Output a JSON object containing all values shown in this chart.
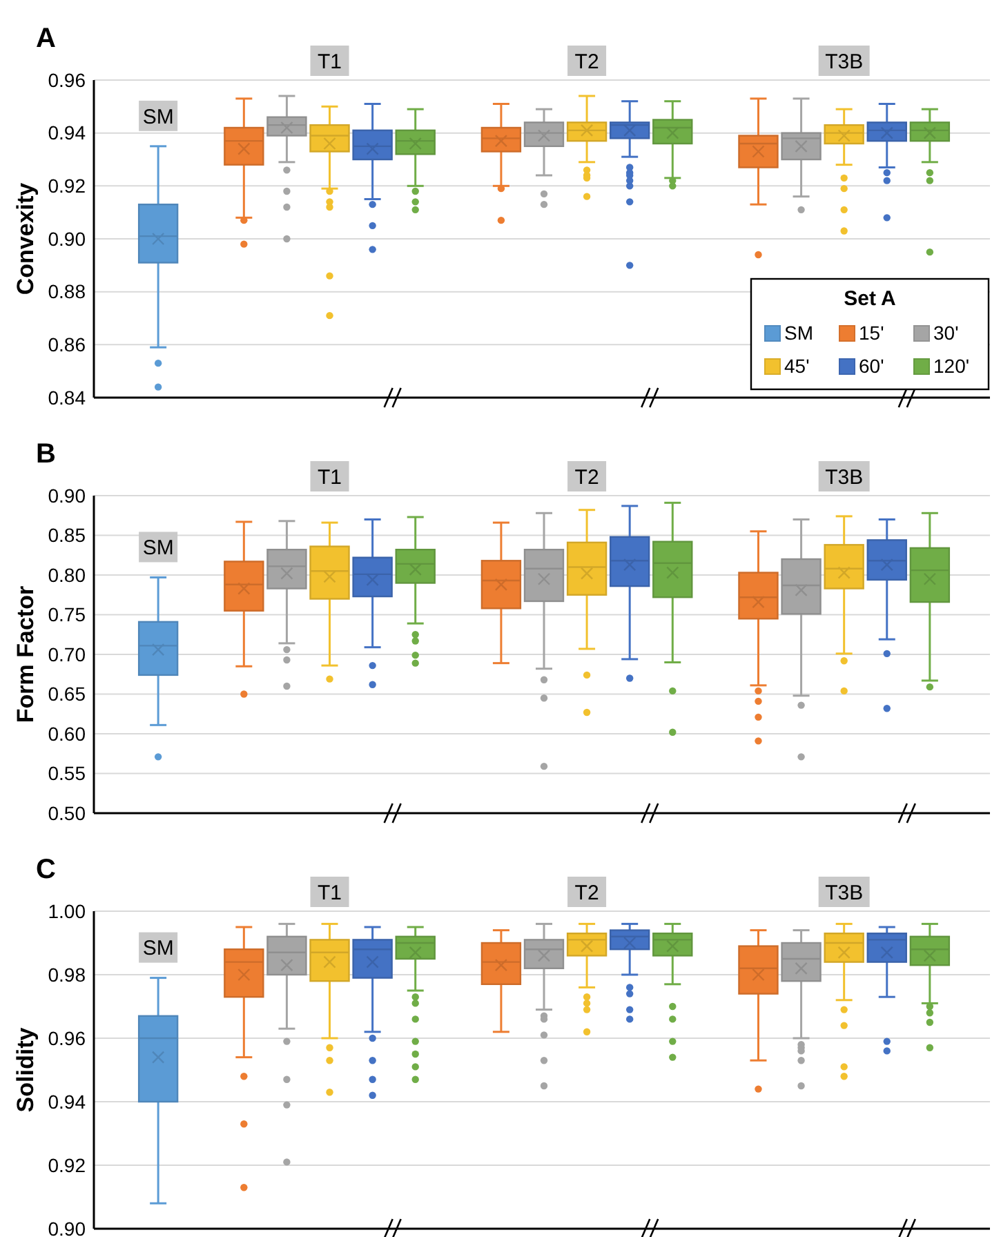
{
  "chart_data": [
    {
      "type": "box",
      "title": "A",
      "ylabel": "Convexity",
      "categories": [
        null,
        null,
        null,
        null,
        null,
        null,
        null,
        null,
        null,
        null,
        null,
        null,
        null,
        null,
        null,
        null,
        null,
        null,
        null,
        null,
        null
      ],
      "ylim": [
        0.84,
        0.96
      ],
      "yticks": [
        {
          "value": 0.84,
          "label": "0.84"
        },
        {
          "value": 0.86,
          "label": "0.86"
        },
        {
          "value": 0.88,
          "label": "0.88"
        },
        {
          "value": 0.9,
          "label": "0.90"
        },
        {
          "value": 0.92,
          "label": "0.92"
        },
        {
          "value": 0.94,
          "label": "0.94"
        },
        {
          "value": 0.96,
          "label": "0.96"
        }
      ],
      "grid": "y",
      "tick_labels": "y",
      "legend": "bottom right",
      "legend_title": "Set A",
      "annotations": [
        "SM",
        "T1",
        "T2",
        "T3B"
      ],
      "series": [
        {
          "name": "SM",
          "color": "#5b9bd5",
          "boxes": [
            null,
            {
              "low": 0.859,
              "q1": 0.891,
              "median": 0.901,
              "q3": 0.913,
              "high": 0.935,
              "mean": 0.9,
              "outliers": [
                0.853,
                0.844
              ]
            },
            null,
            null,
            null,
            null,
            null,
            null,
            null,
            null,
            null,
            null,
            null,
            null,
            null,
            null,
            null,
            null,
            null,
            null,
            null
          ]
        },
        {
          "name": "15'",
          "color": "#ed7d31",
          "boxes": [
            null,
            null,
            null,
            {
              "low": 0.908,
              "q1": 0.928,
              "median": 0.937,
              "q3": 0.942,
              "high": 0.953,
              "mean": 0.934,
              "outliers": [
                0.907,
                0.898
              ]
            },
            null,
            null,
            null,
            null,
            null,
            {
              "low": 0.92,
              "q1": 0.933,
              "median": 0.938,
              "q3": 0.942,
              "high": 0.951,
              "mean": 0.937,
              "outliers": [
                0.919,
                0.907
              ]
            },
            null,
            null,
            null,
            null,
            null,
            {
              "low": 0.913,
              "q1": 0.927,
              "median": 0.936,
              "q3": 0.939,
              "high": 0.953,
              "mean": 0.933,
              "outliers": [
                0.894
              ]
            },
            null,
            null,
            null,
            null,
            null
          ]
        },
        {
          "name": "30'",
          "color": "#a5a5a5",
          "boxes": [
            null,
            null,
            null,
            null,
            {
              "low": 0.929,
              "q1": 0.939,
              "median": 0.943,
              "q3": 0.946,
              "high": 0.954,
              "mean": 0.942,
              "outliers": [
                0.926,
                0.918,
                0.912,
                0.9
              ]
            },
            null,
            null,
            null,
            null,
            null,
            {
              "low": 0.924,
              "q1": 0.935,
              "median": 0.94,
              "q3": 0.944,
              "high": 0.949,
              "mean": 0.939,
              "outliers": [
                0.917,
                0.913
              ]
            },
            null,
            null,
            null,
            null,
            null,
            {
              "low": 0.916,
              "q1": 0.93,
              "median": 0.938,
              "q3": 0.94,
              "high": 0.953,
              "mean": 0.935,
              "outliers": [
                0.911
              ]
            },
            null,
            null,
            null,
            null
          ]
        },
        {
          "name": "45'",
          "color": "#f2c12e",
          "boxes": [
            null,
            null,
            null,
            null,
            null,
            {
              "low": 0.919,
              "q1": 0.933,
              "median": 0.939,
              "q3": 0.943,
              "high": 0.95,
              "mean": 0.936,
              "outliers": [
                0.918,
                0.914,
                0.912,
                0.886,
                0.871
              ]
            },
            null,
            null,
            null,
            null,
            null,
            {
              "low": 0.929,
              "q1": 0.937,
              "median": 0.941,
              "q3": 0.944,
              "high": 0.954,
              "mean": 0.941,
              "outliers": [
                0.926,
                0.924,
                0.923,
                0.916
              ]
            },
            null,
            null,
            null,
            null,
            null,
            {
              "low": 0.928,
              "q1": 0.936,
              "median": 0.94,
              "q3": 0.943,
              "high": 0.949,
              "mean": 0.939,
              "outliers": [
                0.923,
                0.919,
                0.911,
                0.903
              ]
            },
            null,
            null,
            null
          ]
        },
        {
          "name": "60'",
          "color": "#4472c4",
          "boxes": [
            null,
            null,
            null,
            null,
            null,
            null,
            {
              "low": 0.915,
              "q1": 0.93,
              "median": 0.935,
              "q3": 0.941,
              "high": 0.951,
              "mean": 0.934,
              "outliers": [
                0.913,
                0.905,
                0.896
              ]
            },
            null,
            null,
            null,
            null,
            null,
            {
              "low": 0.931,
              "q1": 0.938,
              "median": 0.943,
              "q3": 0.944,
              "high": 0.952,
              "mean": 0.941,
              "outliers": [
                0.927,
                0.925,
                0.924,
                0.922,
                0.92,
                0.914,
                0.89
              ]
            },
            null,
            null,
            null,
            null,
            null,
            {
              "low": 0.927,
              "q1": 0.937,
              "median": 0.941,
              "q3": 0.944,
              "high": 0.951,
              "mean": 0.94,
              "outliers": [
                0.925,
                0.922,
                0.908
              ]
            },
            null,
            null
          ]
        },
        {
          "name": "120'",
          "color": "#70ad47",
          "boxes": [
            null,
            null,
            null,
            null,
            null,
            null,
            null,
            {
              "low": 0.92,
              "q1": 0.932,
              "median": 0.937,
              "q3": 0.941,
              "high": 0.949,
              "mean": 0.936,
              "outliers": [
                0.918,
                0.914,
                0.911
              ]
            },
            null,
            null,
            null,
            null,
            null,
            {
              "low": 0.923,
              "q1": 0.936,
              "median": 0.942,
              "q3": 0.945,
              "high": 0.952,
              "mean": 0.94,
              "outliers": [
                0.922,
                0.92
              ]
            },
            null,
            null,
            null,
            null,
            null,
            {
              "low": 0.929,
              "q1": 0.937,
              "median": 0.941,
              "q3": 0.944,
              "high": 0.949,
              "mean": 0.94,
              "outliers": [
                0.925,
                0.922,
                0.895
              ]
            },
            null
          ]
        }
      ]
    },
    {
      "type": "box",
      "title": "B",
      "ylabel": "Form Factor",
      "categories": [
        null,
        null,
        null,
        null,
        null,
        null,
        null,
        null,
        null,
        null,
        null,
        null,
        null,
        null,
        null,
        null,
        null,
        null,
        null,
        null,
        null
      ],
      "ylim": [
        0.5,
        0.9
      ],
      "yticks": [
        {
          "value": 0.5,
          "label": "0.50"
        },
        {
          "value": 0.55,
          "label": "0.55"
        },
        {
          "value": 0.6,
          "label": "0.60"
        },
        {
          "value": 0.65,
          "label": "0.65"
        },
        {
          "value": 0.7,
          "label": "0.70"
        },
        {
          "value": 0.75,
          "label": "0.75"
        },
        {
          "value": 0.8,
          "label": "0.80"
        },
        {
          "value": 0.85,
          "label": "0.85"
        },
        {
          "value": 0.9,
          "label": "0.90"
        }
      ],
      "grid": "y",
      "tick_labels": "y",
      "annotations": [
        "SM",
        "T1",
        "T2",
        "T3B"
      ],
      "series": [
        {
          "color": "#5b9bd5",
          "boxes": [
            null,
            {
              "low": 0.611,
              "q1": 0.674,
              "median": 0.711,
              "q3": 0.741,
              "high": 0.797,
              "mean": 0.706,
              "outliers": [
                0.571
              ]
            },
            null,
            null,
            null,
            null,
            null,
            null,
            null,
            null,
            null,
            null,
            null,
            null,
            null,
            null,
            null,
            null,
            null,
            null,
            null
          ]
        },
        {
          "color": "#ed7d31",
          "boxes": [
            null,
            null,
            null,
            {
              "low": 0.685,
              "q1": 0.755,
              "median": 0.788,
              "q3": 0.817,
              "high": 0.867,
              "mean": 0.783,
              "outliers": [
                0.65
              ]
            },
            null,
            null,
            null,
            null,
            null,
            {
              "low": 0.689,
              "q1": 0.758,
              "median": 0.793,
              "q3": 0.818,
              "high": 0.866,
              "mean": 0.788
            },
            null,
            null,
            null,
            null,
            null,
            {
              "low": 0.661,
              "q1": 0.745,
              "median": 0.772,
              "q3": 0.803,
              "high": 0.855,
              "mean": 0.766,
              "outliers": [
                0.654,
                0.641,
                0.621,
                0.591
              ]
            },
            null,
            null,
            null,
            null,
            null
          ]
        },
        {
          "color": "#a5a5a5",
          "boxes": [
            null,
            null,
            null,
            null,
            {
              "low": 0.714,
              "q1": 0.783,
              "median": 0.811,
              "q3": 0.832,
              "high": 0.868,
              "mean": 0.802,
              "outliers": [
                0.706,
                0.693,
                0.66
              ]
            },
            null,
            null,
            null,
            null,
            null,
            {
              "low": 0.682,
              "q1": 0.767,
              "median": 0.808,
              "q3": 0.832,
              "high": 0.878,
              "mean": 0.795,
              "outliers": [
                0.668,
                0.645,
                0.559
              ]
            },
            null,
            null,
            null,
            null,
            null,
            {
              "low": 0.648,
              "q1": 0.751,
              "median": 0.787,
              "q3": 0.82,
              "high": 0.87,
              "mean": 0.781,
              "outliers": [
                0.636,
                0.571
              ]
            },
            null,
            null,
            null,
            null
          ]
        },
        {
          "color": "#f2c12e",
          "boxes": [
            null,
            null,
            null,
            null,
            null,
            {
              "low": 0.686,
              "q1": 0.77,
              "median": 0.805,
              "q3": 0.836,
              "high": 0.866,
              "mean": 0.798,
              "outliers": [
                0.669
              ]
            },
            null,
            null,
            null,
            null,
            null,
            {
              "low": 0.707,
              "q1": 0.775,
              "median": 0.81,
              "q3": 0.841,
              "high": 0.882,
              "mean": 0.802,
              "outliers": [
                0.674,
                0.627
              ]
            },
            null,
            null,
            null,
            null,
            null,
            {
              "low": 0.701,
              "q1": 0.783,
              "median": 0.808,
              "q3": 0.838,
              "high": 0.874,
              "mean": 0.803,
              "outliers": [
                0.692,
                0.654
              ]
            },
            null,
            null,
            null
          ]
        },
        {
          "color": "#4472c4",
          "boxes": [
            null,
            null,
            null,
            null,
            null,
            null,
            {
              "low": 0.709,
              "q1": 0.773,
              "median": 0.801,
              "q3": 0.822,
              "high": 0.87,
              "mean": 0.794,
              "outliers": [
                0.686,
                0.662
              ]
            },
            null,
            null,
            null,
            null,
            null,
            {
              "low": 0.694,
              "q1": 0.786,
              "median": 0.818,
              "q3": 0.848,
              "high": 0.887,
              "mean": 0.813,
              "outliers": [
                0.67
              ]
            },
            null,
            null,
            null,
            null,
            null,
            {
              "low": 0.719,
              "q1": 0.794,
              "median": 0.818,
              "q3": 0.844,
              "high": 0.87,
              "mean": 0.813,
              "outliers": [
                0.701,
                0.632
              ]
            },
            null,
            null
          ]
        },
        {
          "color": "#70ad47",
          "boxes": [
            null,
            null,
            null,
            null,
            null,
            null,
            null,
            {
              "low": 0.739,
              "q1": 0.79,
              "median": 0.814,
              "q3": 0.832,
              "high": 0.873,
              "mean": 0.807,
              "outliers": [
                0.725,
                0.717,
                0.699,
                0.689
              ]
            },
            null,
            null,
            null,
            null,
            null,
            {
              "low": 0.69,
              "q1": 0.772,
              "median": 0.815,
              "q3": 0.842,
              "high": 0.891,
              "mean": 0.803,
              "outliers": [
                0.654,
                0.602
              ]
            },
            null,
            null,
            null,
            null,
            null,
            {
              "low": 0.667,
              "q1": 0.766,
              "median": 0.806,
              "q3": 0.834,
              "high": 0.878,
              "mean": 0.795,
              "outliers": [
                0.659
              ]
            },
            null
          ]
        }
      ]
    },
    {
      "type": "box",
      "title": "C",
      "ylabel": "Solidity",
      "categories": [
        null,
        null,
        null,
        null,
        null,
        null,
        null,
        null,
        null,
        null,
        null,
        null,
        null,
        null,
        null,
        null,
        null,
        null,
        null,
        null,
        null
      ],
      "ylim": [
        0.9,
        1.0
      ],
      "yticks": [
        {
          "value": 0.9,
          "label": "0.90"
        },
        {
          "value": 0.92,
          "label": "0.92"
        },
        {
          "value": 0.94,
          "label": "0.94"
        },
        {
          "value": 0.96,
          "label": "0.96"
        },
        {
          "value": 0.98,
          "label": "0.98"
        },
        {
          "value": 1.0,
          "label": "1.00"
        }
      ],
      "grid": "y",
      "tick_labels": "y",
      "annotations": [
        "SM",
        "T1",
        "T2",
        "T3B"
      ],
      "series": [
        {
          "color": "#5b9bd5",
          "boxes": [
            null,
            {
              "low": 0.908,
              "q1": 0.94,
              "median": 0.96,
              "q3": 0.967,
              "high": 0.979,
              "mean": 0.954
            },
            null,
            null,
            null,
            null,
            null,
            null,
            null,
            null,
            null,
            null,
            null,
            null,
            null,
            null,
            null,
            null,
            null,
            null,
            null
          ]
        },
        {
          "color": "#ed7d31",
          "boxes": [
            null,
            null,
            null,
            {
              "low": 0.954,
              "q1": 0.973,
              "median": 0.984,
              "q3": 0.988,
              "high": 0.995,
              "mean": 0.98,
              "outliers": [
                0.948,
                0.933,
                0.913
              ]
            },
            null,
            null,
            null,
            null,
            null,
            {
              "low": 0.962,
              "q1": 0.977,
              "median": 0.984,
              "q3": 0.99,
              "high": 0.994,
              "mean": 0.983
            },
            null,
            null,
            null,
            null,
            null,
            {
              "low": 0.953,
              "q1": 0.974,
              "median": 0.982,
              "q3": 0.989,
              "high": 0.994,
              "mean": 0.98,
              "outliers": [
                0.944
              ]
            },
            null,
            null,
            null,
            null,
            null
          ]
        },
        {
          "color": "#a5a5a5",
          "boxes": [
            null,
            null,
            null,
            null,
            {
              "low": 0.963,
              "q1": 0.98,
              "median": 0.987,
              "q3": 0.992,
              "high": 0.996,
              "mean": 0.983,
              "outliers": [
                0.959,
                0.947,
                0.939,
                0.921
              ]
            },
            null,
            null,
            null,
            null,
            null,
            {
              "low": 0.969,
              "q1": 0.982,
              "median": 0.988,
              "q3": 0.991,
              "high": 0.996,
              "mean": 0.986,
              "outliers": [
                0.967,
                0.966,
                0.961,
                0.953,
                0.945
              ]
            },
            null,
            null,
            null,
            null,
            null,
            {
              "low": 0.96,
              "q1": 0.978,
              "median": 0.985,
              "q3": 0.99,
              "high": 0.994,
              "mean": 0.982,
              "outliers": [
                0.958,
                0.957,
                0.956,
                0.953,
                0.945
              ]
            },
            null,
            null,
            null,
            null
          ]
        },
        {
          "color": "#f2c12e",
          "boxes": [
            null,
            null,
            null,
            null,
            null,
            {
              "low": 0.96,
              "q1": 0.978,
              "median": 0.987,
              "q3": 0.991,
              "high": 0.996,
              "mean": 0.984,
              "outliers": [
                0.957,
                0.953,
                0.943
              ]
            },
            null,
            null,
            null,
            null,
            null,
            {
              "low": 0.976,
              "q1": 0.986,
              "median": 0.991,
              "q3": 0.993,
              "high": 0.996,
              "mean": 0.989,
              "outliers": [
                0.973,
                0.971,
                0.969,
                0.962
              ]
            },
            null,
            null,
            null,
            null,
            null,
            {
              "low": 0.972,
              "q1": 0.984,
              "median": 0.99,
              "q3": 0.993,
              "high": 0.996,
              "mean": 0.987,
              "outliers": [
                0.969,
                0.964,
                0.951,
                0.948
              ]
            },
            null,
            null,
            null
          ]
        },
        {
          "color": "#4472c4",
          "boxes": [
            null,
            null,
            null,
            null,
            null,
            null,
            {
              "low": 0.962,
              "q1": 0.979,
              "median": 0.988,
              "q3": 0.991,
              "high": 0.995,
              "mean": 0.984,
              "outliers": [
                0.96,
                0.953,
                0.947,
                0.942
              ]
            },
            null,
            null,
            null,
            null,
            null,
            {
              "low": 0.98,
              "q1": 0.988,
              "median": 0.992,
              "q3": 0.994,
              "high": 0.996,
              "mean": 0.99,
              "outliers": [
                0.976,
                0.974,
                0.969,
                0.966
              ]
            },
            null,
            null,
            null,
            null,
            null,
            {
              "low": 0.973,
              "q1": 0.984,
              "median": 0.991,
              "q3": 0.993,
              "high": 0.995,
              "mean": 0.987,
              "outliers": [
                0.959,
                0.956
              ]
            },
            null,
            null
          ]
        },
        {
          "color": "#70ad47",
          "boxes": [
            null,
            null,
            null,
            null,
            null,
            null,
            null,
            {
              "low": 0.975,
              "q1": 0.985,
              "median": 0.99,
              "q3": 0.992,
              "high": 0.995,
              "mean": 0.987,
              "outliers": [
                0.973,
                0.971,
                0.966,
                0.959,
                0.955,
                0.951,
                0.947
              ]
            },
            null,
            null,
            null,
            null,
            null,
            {
              "low": 0.977,
              "q1": 0.986,
              "median": 0.991,
              "q3": 0.993,
              "high": 0.996,
              "mean": 0.989,
              "outliers": [
                0.97,
                0.966,
                0.959,
                0.954
              ]
            },
            null,
            null,
            null,
            null,
            null,
            {
              "low": 0.971,
              "q1": 0.983,
              "median": 0.988,
              "q3": 0.992,
              "high": 0.996,
              "mean": 0.986,
              "outliers": [
                0.97,
                0.968,
                0.965,
                0.957
              ]
            },
            null
          ]
        }
      ]
    }
  ]
}
